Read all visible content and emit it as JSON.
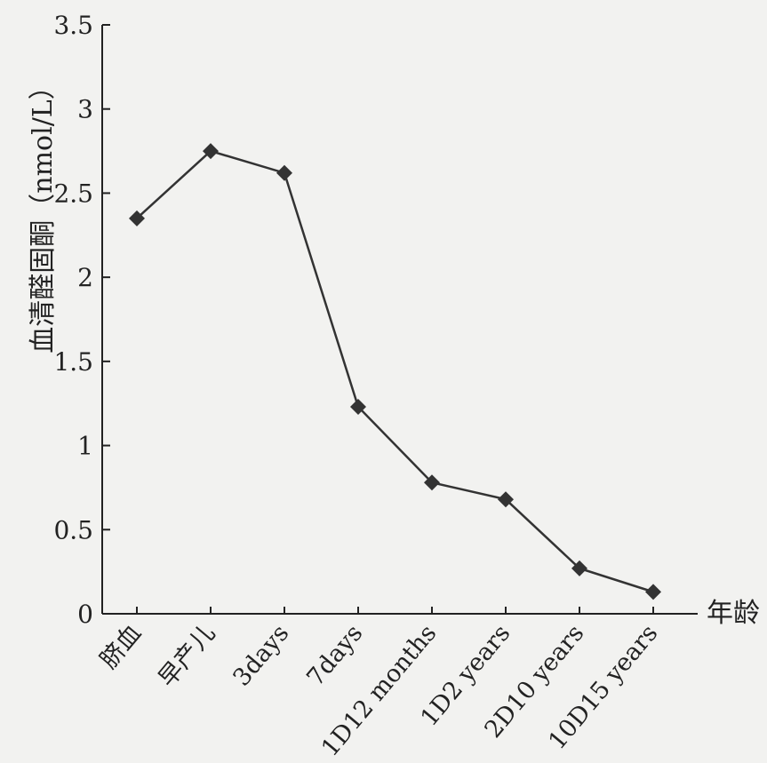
{
  "chart_data": {
    "type": "line",
    "title": "",
    "xlabel": "年龄",
    "ylabel": "血清醛固酮（nmol/L）",
    "ylim": [
      0,
      3.5
    ],
    "yticks": [
      "0",
      "0.5",
      "1",
      "1.5",
      "2",
      "2.5",
      "3",
      "3.5"
    ],
    "categories": [
      "脐血",
      "早产儿",
      "3days",
      "7days",
      "1D12 months",
      "1D2 years",
      "2D10 years",
      "10D15 years"
    ],
    "series": [
      {
        "values": [
          2.35,
          2.75,
          2.62,
          1.23,
          0.78,
          0.68,
          0.27,
          0.13
        ]
      }
    ],
    "grid": false,
    "legend": "none",
    "colors": {
      "line": "#333333",
      "marker": "#333333",
      "axis": "#222222",
      "text": "#222222"
    }
  }
}
